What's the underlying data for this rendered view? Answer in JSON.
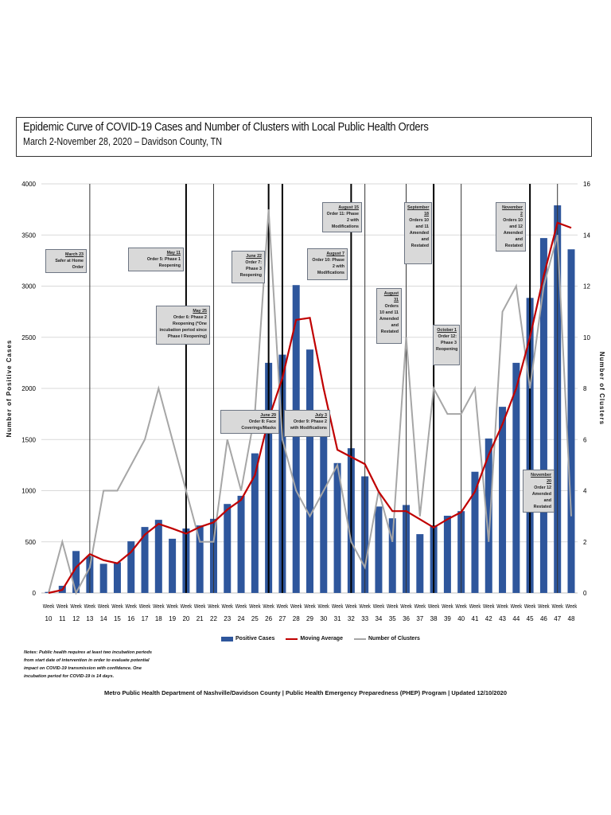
{
  "header": {
    "title": "Epidemic Curve of COVID-19 Cases and Number of Clusters with Local Public Health Orders",
    "subtitle": "March 2-November 28, 2020 – Davidson County, TN"
  },
  "chart_data": {
    "type": "bar+line",
    "title": "Epidemic Curve of COVID-19 Cases and Number of Clusters with Local Public Health Orders",
    "subtitle": "March 2-November 28, 2020 – Davidson County, TN",
    "ylabel": "Number of Positive Cases",
    "y2label": "Number of Clusters",
    "ylim": [
      0,
      4000
    ],
    "y2lim": [
      0,
      16
    ],
    "yticks": [
      0,
      500,
      1000,
      1500,
      2000,
      2500,
      3000,
      3500,
      4000
    ],
    "y2ticks": [
      0,
      2,
      4,
      6,
      8,
      10,
      12,
      14,
      16
    ],
    "grid": true,
    "legend_position": "bottom",
    "x_prefix": "Week",
    "categories": [
      "10",
      "11",
      "12",
      "13",
      "14",
      "15",
      "16",
      "17",
      "18",
      "19",
      "20",
      "21",
      "22",
      "23",
      "24",
      "25",
      "26",
      "27",
      "28",
      "29",
      "30",
      "31",
      "32",
      "33",
      "34",
      "35",
      "36",
      "37",
      "38",
      "39",
      "40",
      "41",
      "42",
      "43",
      "44",
      "45",
      "46",
      "47",
      "48"
    ],
    "series": [
      {
        "name": "Positive Cases",
        "type": "bar",
        "axis": "left",
        "color": "#2e569c",
        "values": [
          10,
          70,
          410,
          360,
          285,
          300,
          505,
          645,
          715,
          530,
          630,
          660,
          725,
          870,
          950,
          1365,
          2250,
          2330,
          3010,
          2380,
          1530,
          1270,
          1415,
          1140,
          845,
          730,
          860,
          575,
          660,
          755,
          800,
          1185,
          1510,
          1820,
          2250,
          2885,
          3470,
          3790,
          3360
        ]
      },
      {
        "name": "Moving Average",
        "type": "line",
        "axis": "left",
        "color": "#c00000",
        "values": [
          0,
          30,
          250,
          380,
          320,
          290,
          400,
          570,
          675,
          630,
          580,
          645,
          690,
          815,
          910,
          1150,
          1700,
          2100,
          2670,
          2690,
          2000,
          1400,
          1330,
          1260,
          990,
          800,
          800,
          720,
          640,
          720,
          790,
          990,
          1350,
          1650,
          2000,
          2500,
          3100,
          3620,
          3570
        ]
      },
      {
        "name": "Number of Clusters",
        "type": "line",
        "axis": "right",
        "color": "#a6a6a6",
        "values": [
          0,
          2,
          0,
          1,
          4,
          4,
          5,
          6,
          8,
          6,
          4,
          2,
          2,
          6,
          4,
          7,
          15,
          6,
          4,
          3,
          4,
          5,
          2,
          1,
          4,
          2,
          10,
          3,
          8,
          7,
          7,
          8,
          2,
          11,
          12,
          8,
          12,
          14,
          3
        ]
      }
    ],
    "order_lines": [
      {
        "week": 13,
        "bold": false
      },
      {
        "week": 20,
        "bold": true
      },
      {
        "week": 22,
        "bold": false
      },
      {
        "week": 26,
        "bold": true
      },
      {
        "week": 27,
        "bold": true
      },
      {
        "week": 32,
        "bold": true
      },
      {
        "week": 33,
        "bold": false
      },
      {
        "week": 36,
        "bold": false
      },
      {
        "week": 38,
        "bold": true
      },
      {
        "week": 40,
        "bold": false
      },
      {
        "week": 45,
        "bold": true
      },
      {
        "week": 47,
        "bold": false
      }
    ],
    "annotations": [
      {
        "date": "March 23",
        "text": "Safer at Home Order"
      },
      {
        "date": "May 11",
        "text": "Order 5: Phase 1 Reopening"
      },
      {
        "date": "May 25",
        "text": "Order 6: Phase 2 Reopening (*One incubation period since Phase I Reopening)"
      },
      {
        "date": "June 22",
        "text": "Order 7: Phase 3 Reopening"
      },
      {
        "date": "June 29",
        "text": "Order 8: Face Coverings/Masks"
      },
      {
        "date": "July 3",
        "text": "Order 9: Phase 2 with Modifications"
      },
      {
        "date": "August 7",
        "text": "Order 10: Phase 2 with Modifications"
      },
      {
        "date": "August 15",
        "text": "Order 11: Phase 2 with Modifications"
      },
      {
        "date": "August 31",
        "text": "Orders 10 and 11 Amended and Restated"
      },
      {
        "date": "September 18",
        "text": "Orders 10 and 11 Amended and Restated"
      },
      {
        "date": "October 1",
        "text": "Order 12: Phase 3 Reopening"
      },
      {
        "date": "November 2",
        "text": "Orders 10 and 12 Amended and Restated"
      },
      {
        "date": "November 20",
        "text": "Order 12 Amended and Restated"
      }
    ]
  },
  "notes": "Notes: Public health requires at least two incubation periods from start date of intervention in order to evaluate potential impact on COVID-19 transmission with confidence. One incubation period for COVID-19 is 14 days.",
  "footer": "Metro Public Health Department of Nashville/Davidson County   |   Public Health Emergency Preparedness (PHEP) Program   |   Updated 12/10/2020"
}
